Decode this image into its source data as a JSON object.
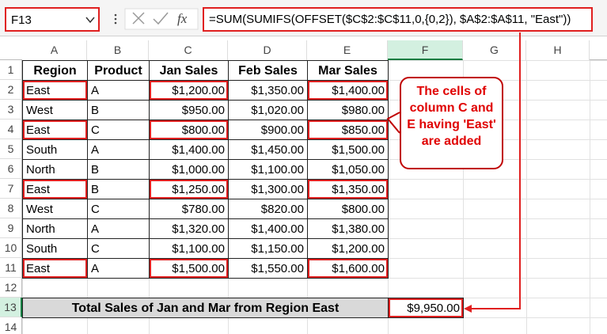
{
  "name_box": "F13",
  "function_label": "fx",
  "formula": "=SUM(SUMIFS(OFFSET($C$2:$C$11,0,{0,2}), $A$2:$A$11, \"East\"))",
  "column_headers": [
    "A",
    "B",
    "C",
    "D",
    "E",
    "F",
    "G",
    "H"
  ],
  "row_headers": [
    "1",
    "2",
    "3",
    "4",
    "5",
    "6",
    "7",
    "8",
    "9",
    "10",
    "11",
    "12",
    "13",
    "14"
  ],
  "table": {
    "header": [
      "Region",
      "Product",
      "Jan Sales",
      "Feb Sales",
      "Mar Sales"
    ],
    "rows": [
      [
        "East",
        "A",
        "$1,200.00",
        "$1,350.00",
        "$1,400.00"
      ],
      [
        "West",
        "B",
        "$950.00",
        "$1,020.00",
        "$980.00"
      ],
      [
        "East",
        "C",
        "$800.00",
        "$900.00",
        "$850.00"
      ],
      [
        "South",
        "A",
        "$1,400.00",
        "$1,450.00",
        "$1,500.00"
      ],
      [
        "North",
        "B",
        "$1,000.00",
        "$1,100.00",
        "$1,050.00"
      ],
      [
        "East",
        "B",
        "$1,250.00",
        "$1,300.00",
        "$1,350.00"
      ],
      [
        "West",
        "C",
        "$780.00",
        "$820.00",
        "$800.00"
      ],
      [
        "North",
        "A",
        "$1,320.00",
        "$1,400.00",
        "$1,380.00"
      ],
      [
        "South",
        "C",
        "$1,100.00",
        "$1,150.00",
        "$1,200.00"
      ],
      [
        "East",
        "A",
        "$1,500.00",
        "$1,550.00",
        "$1,600.00"
      ]
    ]
  },
  "total": {
    "label": "Total Sales of Jan and Mar from Region East",
    "value": "$9,950.00"
  },
  "callout": "The cells of column C and E having 'East' are added"
}
